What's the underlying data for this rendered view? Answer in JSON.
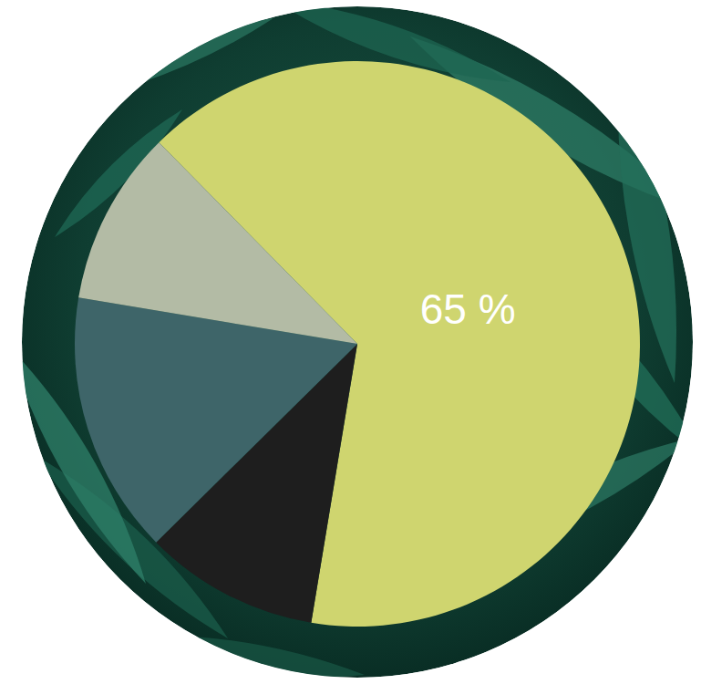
{
  "chart_data": {
    "type": "pie",
    "values": [
      65,
      10,
      15,
      10
    ],
    "value_labels": [
      "65 %",
      null,
      null,
      null
    ],
    "colors": [
      "#cfd56f",
      "#1e1e1e",
      "#3e6569",
      "#b3bba5"
    ],
    "data_labels": true
  }
}
